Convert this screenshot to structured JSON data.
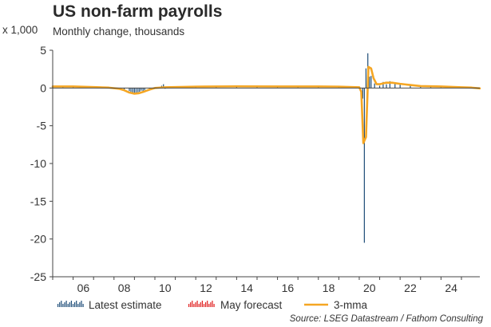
{
  "chart_data": {
    "type": "bar",
    "title": "US non-farm payrolls",
    "subtitle": "Monthly change, thousands",
    "yunit": "x 1,000",
    "source": "Source: LSEG Datastream / Fathom Consulting",
    "ylim": [
      -25,
      5
    ],
    "yticks": [
      5,
      0,
      -5,
      -10,
      -15,
      -20,
      -25
    ],
    "xlim": [
      2005,
      2025.9
    ],
    "xticks": [
      {
        "value": 2006,
        "label": "06"
      },
      {
        "value": 2008,
        "label": "08"
      },
      {
        "value": 2010,
        "label": "10"
      },
      {
        "value": 2012,
        "label": "12"
      },
      {
        "value": 2014,
        "label": "14"
      },
      {
        "value": 2016,
        "label": "16"
      },
      {
        "value": 2018,
        "label": "18"
      },
      {
        "value": 2020,
        "label": "20"
      },
      {
        "value": 2022,
        "label": "22"
      },
      {
        "value": 2024,
        "label": "24"
      }
    ],
    "grid": false,
    "legend_position": "bottom",
    "series": [
      {
        "name": "Latest estimate",
        "type": "bar",
        "color": "#1f4e79",
        "x": [
          2005.0,
          2005.5,
          2006.0,
          2006.5,
          2007.0,
          2007.5,
          2008.0,
          2008.25,
          2008.5,
          2008.75,
          2008.83,
          2008.92,
          2009.0,
          2009.08,
          2009.17,
          2009.25,
          2009.33,
          2009.42,
          2009.5,
          2009.75,
          2010.0,
          2010.33,
          2010.42,
          2010.5,
          2011.0,
          2011.5,
          2012.0,
          2013.0,
          2014.0,
          2015.0,
          2016.0,
          2017.0,
          2018.0,
          2019.0,
          2020.0,
          2020.17,
          2020.25,
          2020.33,
          2020.42,
          2020.5,
          2020.58,
          2020.75,
          2021.0,
          2021.17,
          2021.33,
          2021.5,
          2021.75,
          2022.0,
          2022.5,
          2023.0,
          2023.5,
          2024.0,
          2024.5,
          2025.0,
          2025.33,
          2025.5,
          2025.75
        ],
        "y": [
          0.2,
          0.2,
          0.2,
          0.1,
          0.1,
          0.05,
          -0.03,
          -0.15,
          -0.2,
          -0.4,
          -0.7,
          -0.6,
          -0.8,
          -0.7,
          -0.75,
          -0.5,
          -0.35,
          -0.45,
          -0.3,
          -0.2,
          0.0,
          0.3,
          0.5,
          -0.1,
          0.1,
          0.1,
          0.2,
          0.2,
          0.25,
          0.2,
          0.2,
          0.18,
          0.2,
          0.2,
          0.2,
          -1.4,
          -20.5,
          2.6,
          4.6,
          1.5,
          1.6,
          0.6,
          0.3,
          0.8,
          0.5,
          0.9,
          0.7,
          0.6,
          0.4,
          0.3,
          0.2,
          0.2,
          0.15,
          0.1,
          0.1,
          0.05,
          -0.05
        ]
      },
      {
        "name": "May forecast",
        "type": "bar",
        "color": "#e02020",
        "x": [],
        "y": []
      },
      {
        "name": "3-mma",
        "type": "line",
        "color": "#f5a623",
        "x": [
          2005.0,
          2006.0,
          2007.0,
          2007.75,
          2008.25,
          2008.5,
          2008.75,
          2009.0,
          2009.2,
          2009.5,
          2009.75,
          2010.0,
          2010.5,
          2011.0,
          2012.0,
          2014.0,
          2016.0,
          2018.0,
          2019.0,
          2020.0,
          2020.1,
          2020.2,
          2020.33,
          2020.45,
          2020.58,
          2020.7,
          2020.85,
          2021.0,
          2021.3,
          2021.6,
          2022.0,
          2022.5,
          2023.0,
          2024.0,
          2025.0,
          2025.5,
          2025.9
        ],
        "y": [
          0.2,
          0.2,
          0.12,
          0.05,
          -0.1,
          -0.3,
          -0.6,
          -0.75,
          -0.7,
          -0.45,
          -0.2,
          0.0,
          0.1,
          0.12,
          0.18,
          0.22,
          0.2,
          0.2,
          0.18,
          0.1,
          -0.5,
          -7.3,
          -6.5,
          2.8,
          2.6,
          1.3,
          0.5,
          0.5,
          0.7,
          0.7,
          0.55,
          0.4,
          0.25,
          0.2,
          0.1,
          0.05,
          -0.05
        ]
      }
    ]
  }
}
